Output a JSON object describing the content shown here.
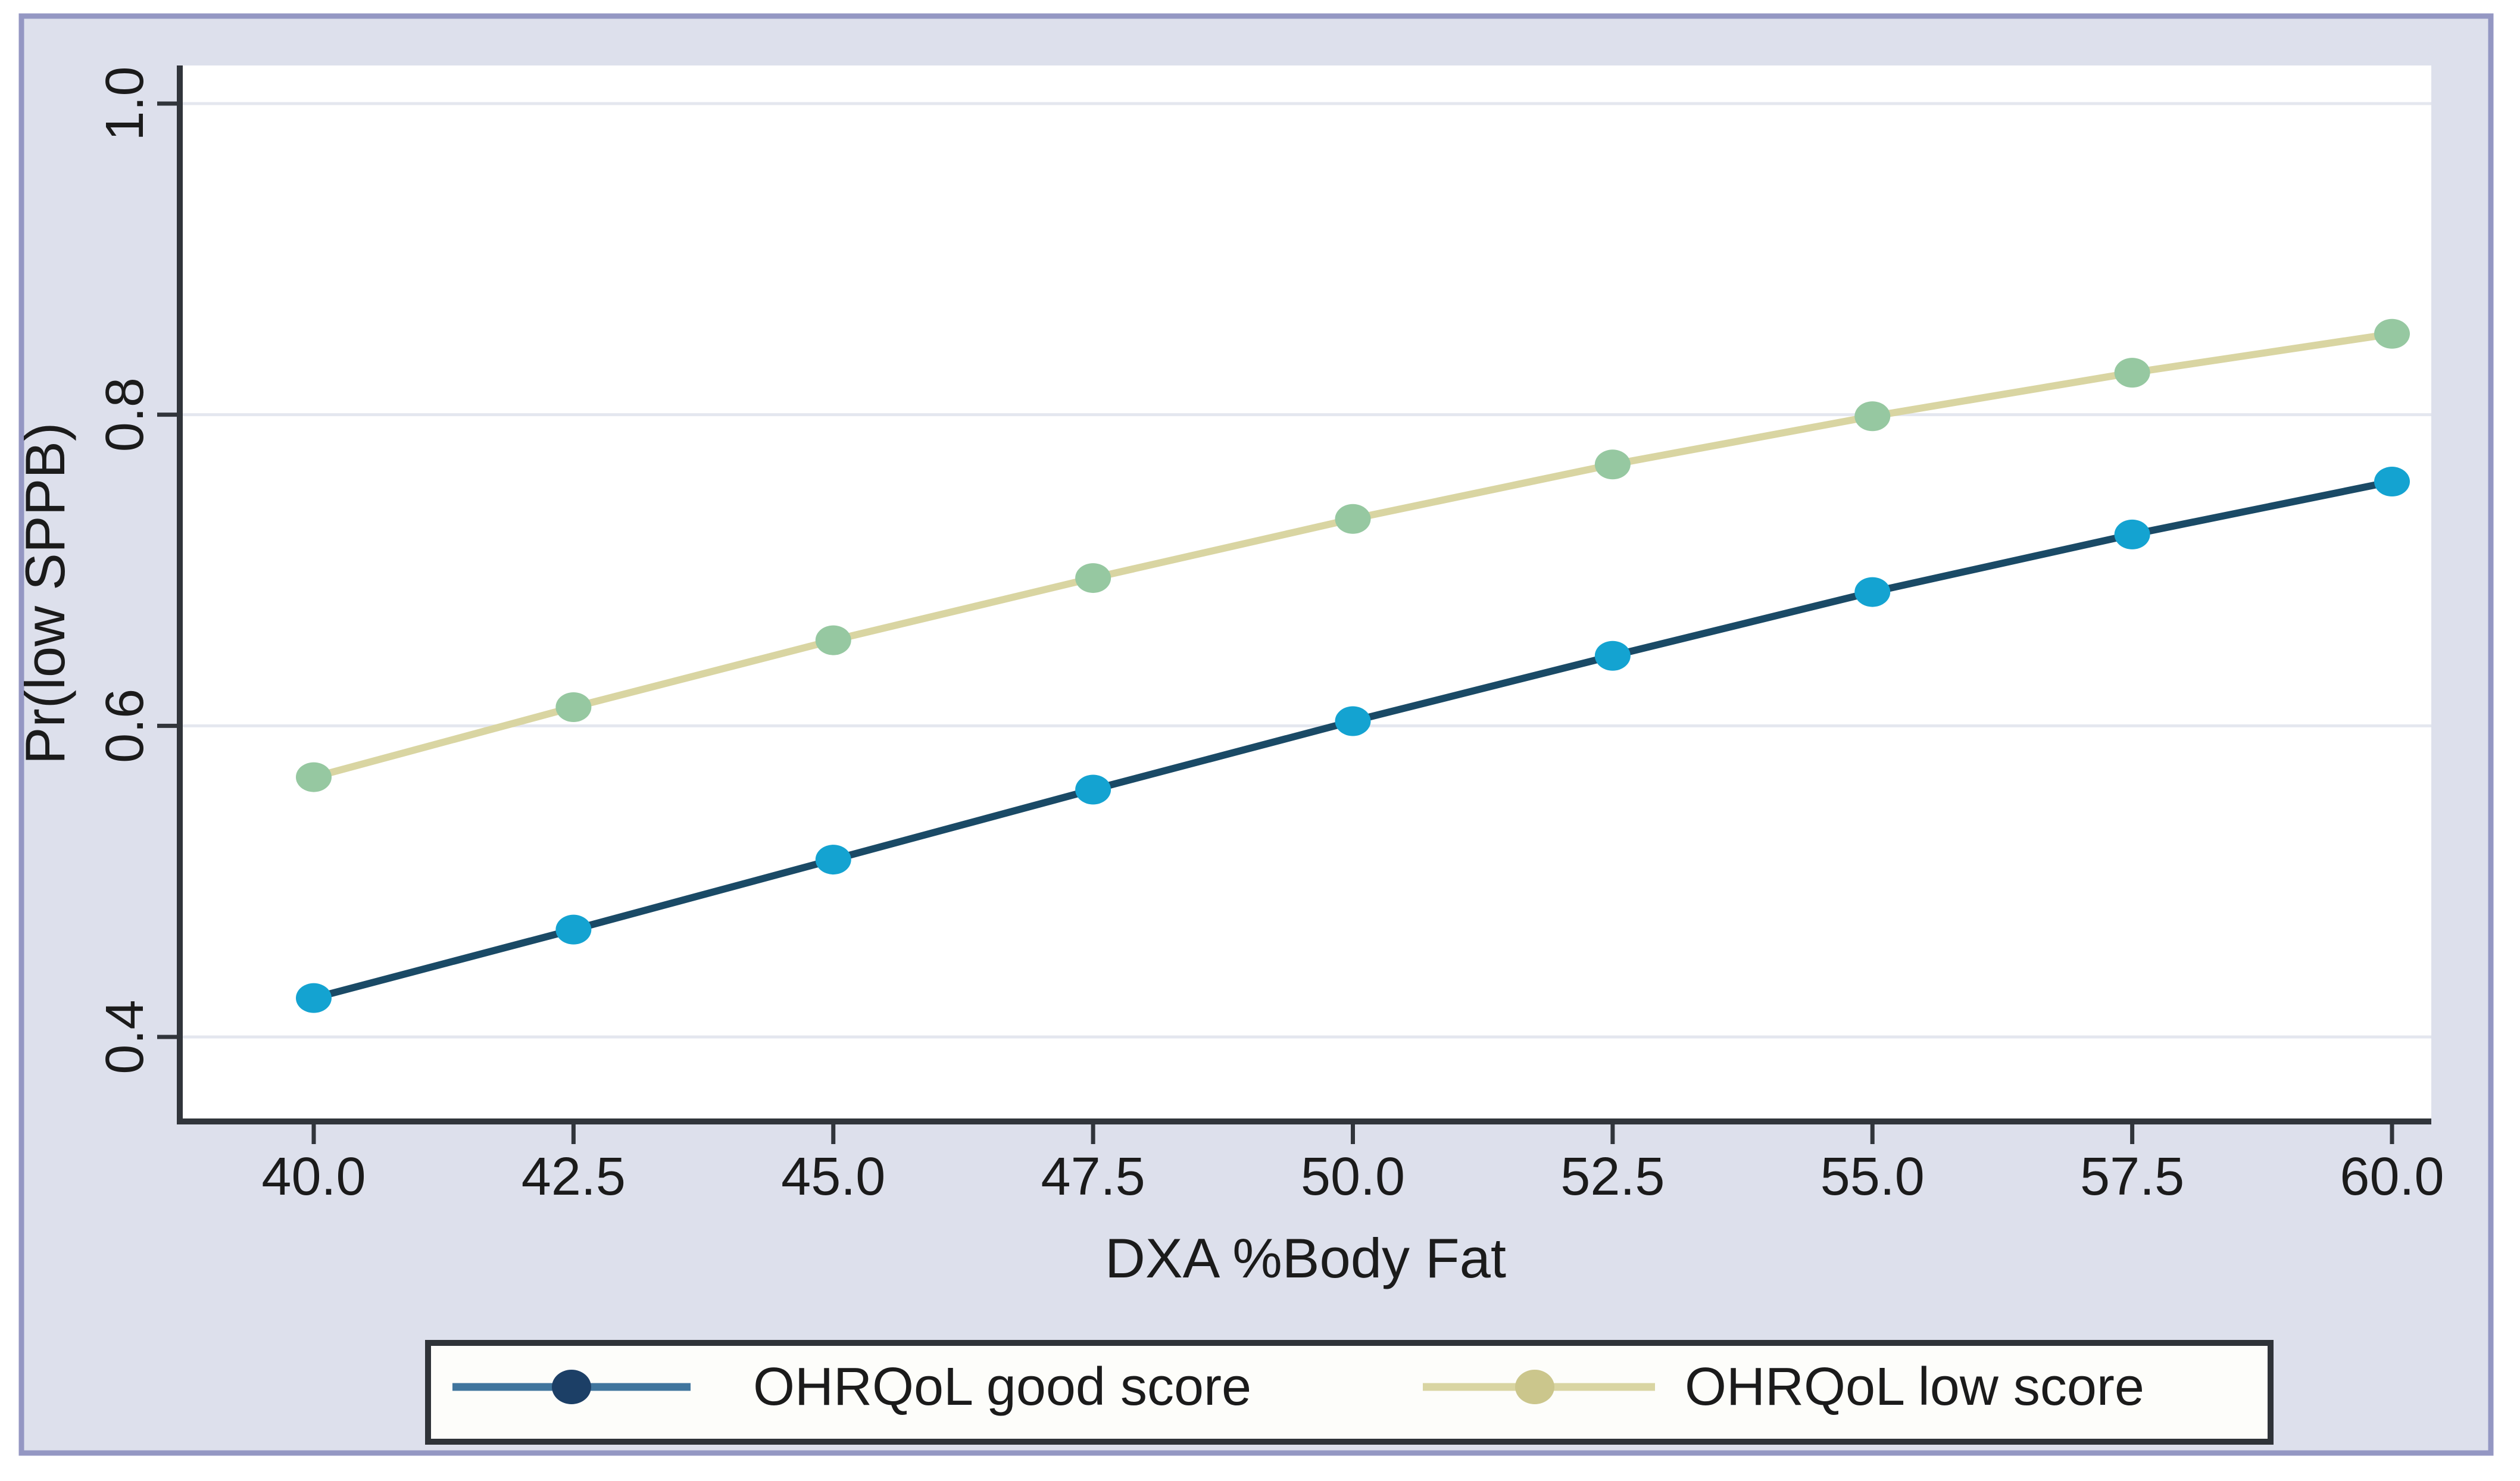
{
  "figure": {
    "type_hint": "stata-style margins plot",
    "colors": {
      "page_background": "#ffffff",
      "figure_background": "#dde0ec",
      "figure_border": "#9497c3",
      "plot_background": "#ffffff",
      "axis": "#31353b",
      "gridline": "#e4e7ef",
      "text": "#1b1b1b",
      "legend_background": "#fdfdfa",
      "legend_border": "#2f3338"
    }
  },
  "chart_data": {
    "type": "line",
    "title": "",
    "xlabel": "DXA %Body Fat",
    "ylabel": "Pr(low SPPB)",
    "x": [
      40,
      42.5,
      45,
      47.5,
      50,
      52.5,
      55,
      57.5,
      60
    ],
    "x_tick_labels": [
      "40.0",
      "42.5",
      "45.0",
      "47.5",
      "50.0",
      "52.5",
      "55.0",
      "57.5",
      "60.0"
    ],
    "y_ticks": [
      0.4,
      0.6,
      0.8,
      1.0
    ],
    "y_tick_labels": [
      "0.4",
      "0.6",
      "0.8",
      "1.0"
    ],
    "xlim": [
      40,
      60
    ],
    "ylim": [
      0.4,
      1.0
    ],
    "grid": "horizontal",
    "legend_position": "bottom",
    "series": [
      {
        "name": "OHRQoL good score",
        "values": [
          0.425,
          0.469,
          0.514,
          0.559,
          0.603,
          0.645,
          0.686,
          0.723,
          0.757
        ],
        "line_color": "#1a4a66",
        "marker_color": "#14a3d1",
        "legend_line_color": "#40759d",
        "legend_marker_color": "#1c3f66"
      },
      {
        "name": "OHRQoL low score",
        "values": [
          0.567,
          0.612,
          0.655,
          0.695,
          0.733,
          0.768,
          0.799,
          0.827,
          0.852
        ],
        "line_color": "#d9d5a2",
        "marker_color": "#96c8a1",
        "legend_line_color": "#d9d5a2",
        "legend_marker_color": "#cbc68c"
      }
    ]
  }
}
